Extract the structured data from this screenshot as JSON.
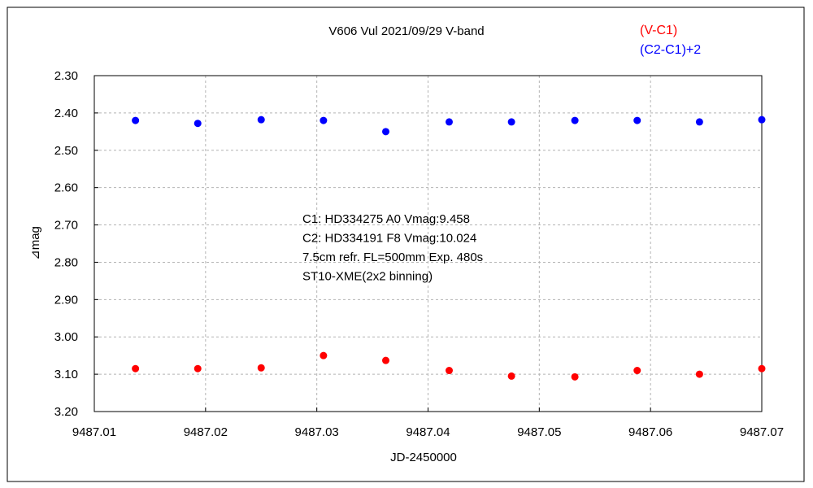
{
  "chart_data": {
    "type": "scatter",
    "title": "V606 Vul   2021/09/29   V-band",
    "xlabel": "JD-2450000",
    "ylabel": "⊿mag",
    "xlim": [
      9487.01,
      9487.07
    ],
    "ylim": [
      2.3,
      3.2
    ],
    "y_inverted": true,
    "grid": true,
    "legend_position": "top-right",
    "x_ticks": [
      "9487.01",
      "9487.02",
      "9487.03",
      "9487.04",
      "9487.05",
      "9487.06",
      "9487.07"
    ],
    "y_ticks": [
      "2.30",
      "2.40",
      "2.50",
      "2.60",
      "2.70",
      "2.80",
      "2.90",
      "3.00",
      "3.10",
      "3.20"
    ],
    "series": [
      {
        "name": "(V-C1)",
        "color": "#ff0000",
        "x": [
          9487.0137,
          9487.0193,
          9487.025,
          9487.0306,
          9487.0362,
          9487.0419,
          9487.0475,
          9487.0532,
          9487.0588,
          9487.0644,
          9487.07
        ],
        "y": [
          3.085,
          3.085,
          3.083,
          3.05,
          3.063,
          3.09,
          3.105,
          3.107,
          3.09,
          3.1,
          3.085
        ]
      },
      {
        "name": "(C2-C1)+2",
        "color": "#0000ff",
        "x": [
          9487.0137,
          9487.0193,
          9487.025,
          9487.0306,
          9487.0362,
          9487.0419,
          9487.0475,
          9487.0532,
          9487.0588,
          9487.0644,
          9487.07
        ],
        "y": [
          2.42,
          2.428,
          2.418,
          2.42,
          2.45,
          2.424,
          2.424,
          2.42,
          2.42,
          2.424,
          2.418
        ]
      }
    ],
    "annotations": [
      "C1: HD334275 A0 Vmag:9.458",
      "C2: HD334191 F8  Vmag:10.024",
      "7.5cm refr. FL=500mm Exp. 480s",
      "ST10-XME(2x2 binning)"
    ]
  }
}
